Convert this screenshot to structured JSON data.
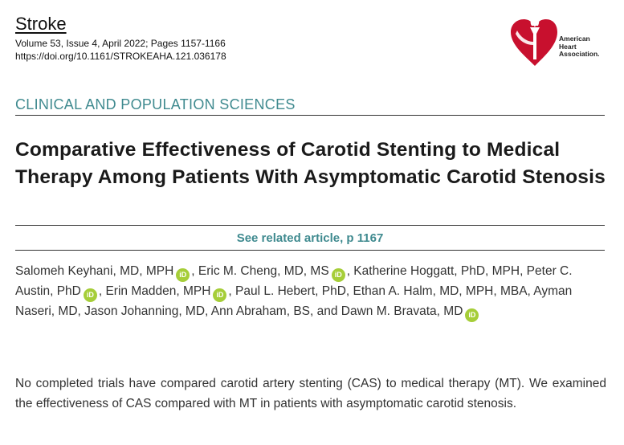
{
  "journal": {
    "name": "Stroke",
    "volume_line": "Volume 53, Issue 4, April 2022; Pages 1157-1166",
    "doi": "https://doi.org/10.1161/STROKEAHA.121.036178"
  },
  "logo": {
    "line1": "American",
    "line2": "Heart",
    "line3": "Association."
  },
  "section": "CLINICAL AND POPULATION SCIENCES",
  "title": "Comparative Effectiveness of Carotid Stenting to Medical Therapy Among Patients With Asymptomatic Carotid Stenosis",
  "related": "See related article, p 1167",
  "orcid_label": "iD",
  "authors": {
    "a1": "Salomeh Keyhani, MD, MPH",
    "sep1": ", Eric M. Cheng, MD, MS",
    "sep2": ", Katherine Hoggatt, PhD, MPH, Peter C. Austin, PhD",
    "sep3": ", Erin Madden, MPH",
    "sep4": ", Paul L. Hebert, PhD, Ethan A. Halm, MD, MPH, MBA, Ayman Naseri, MD, Jason Johanning, MD, Ann Abraham, BS, and Dawn M. Bravata, MD"
  },
  "abstract": "No completed trials have compared carotid artery stenting (CAS) to medical therapy (MT). We examined the effectiveness of CAS compared with MT in patients with asymptomatic carotid stenosis.",
  "colors": {
    "accent": "#3f8a8f",
    "orcid": "#a6ce39",
    "logo_red": "#c8102e"
  }
}
